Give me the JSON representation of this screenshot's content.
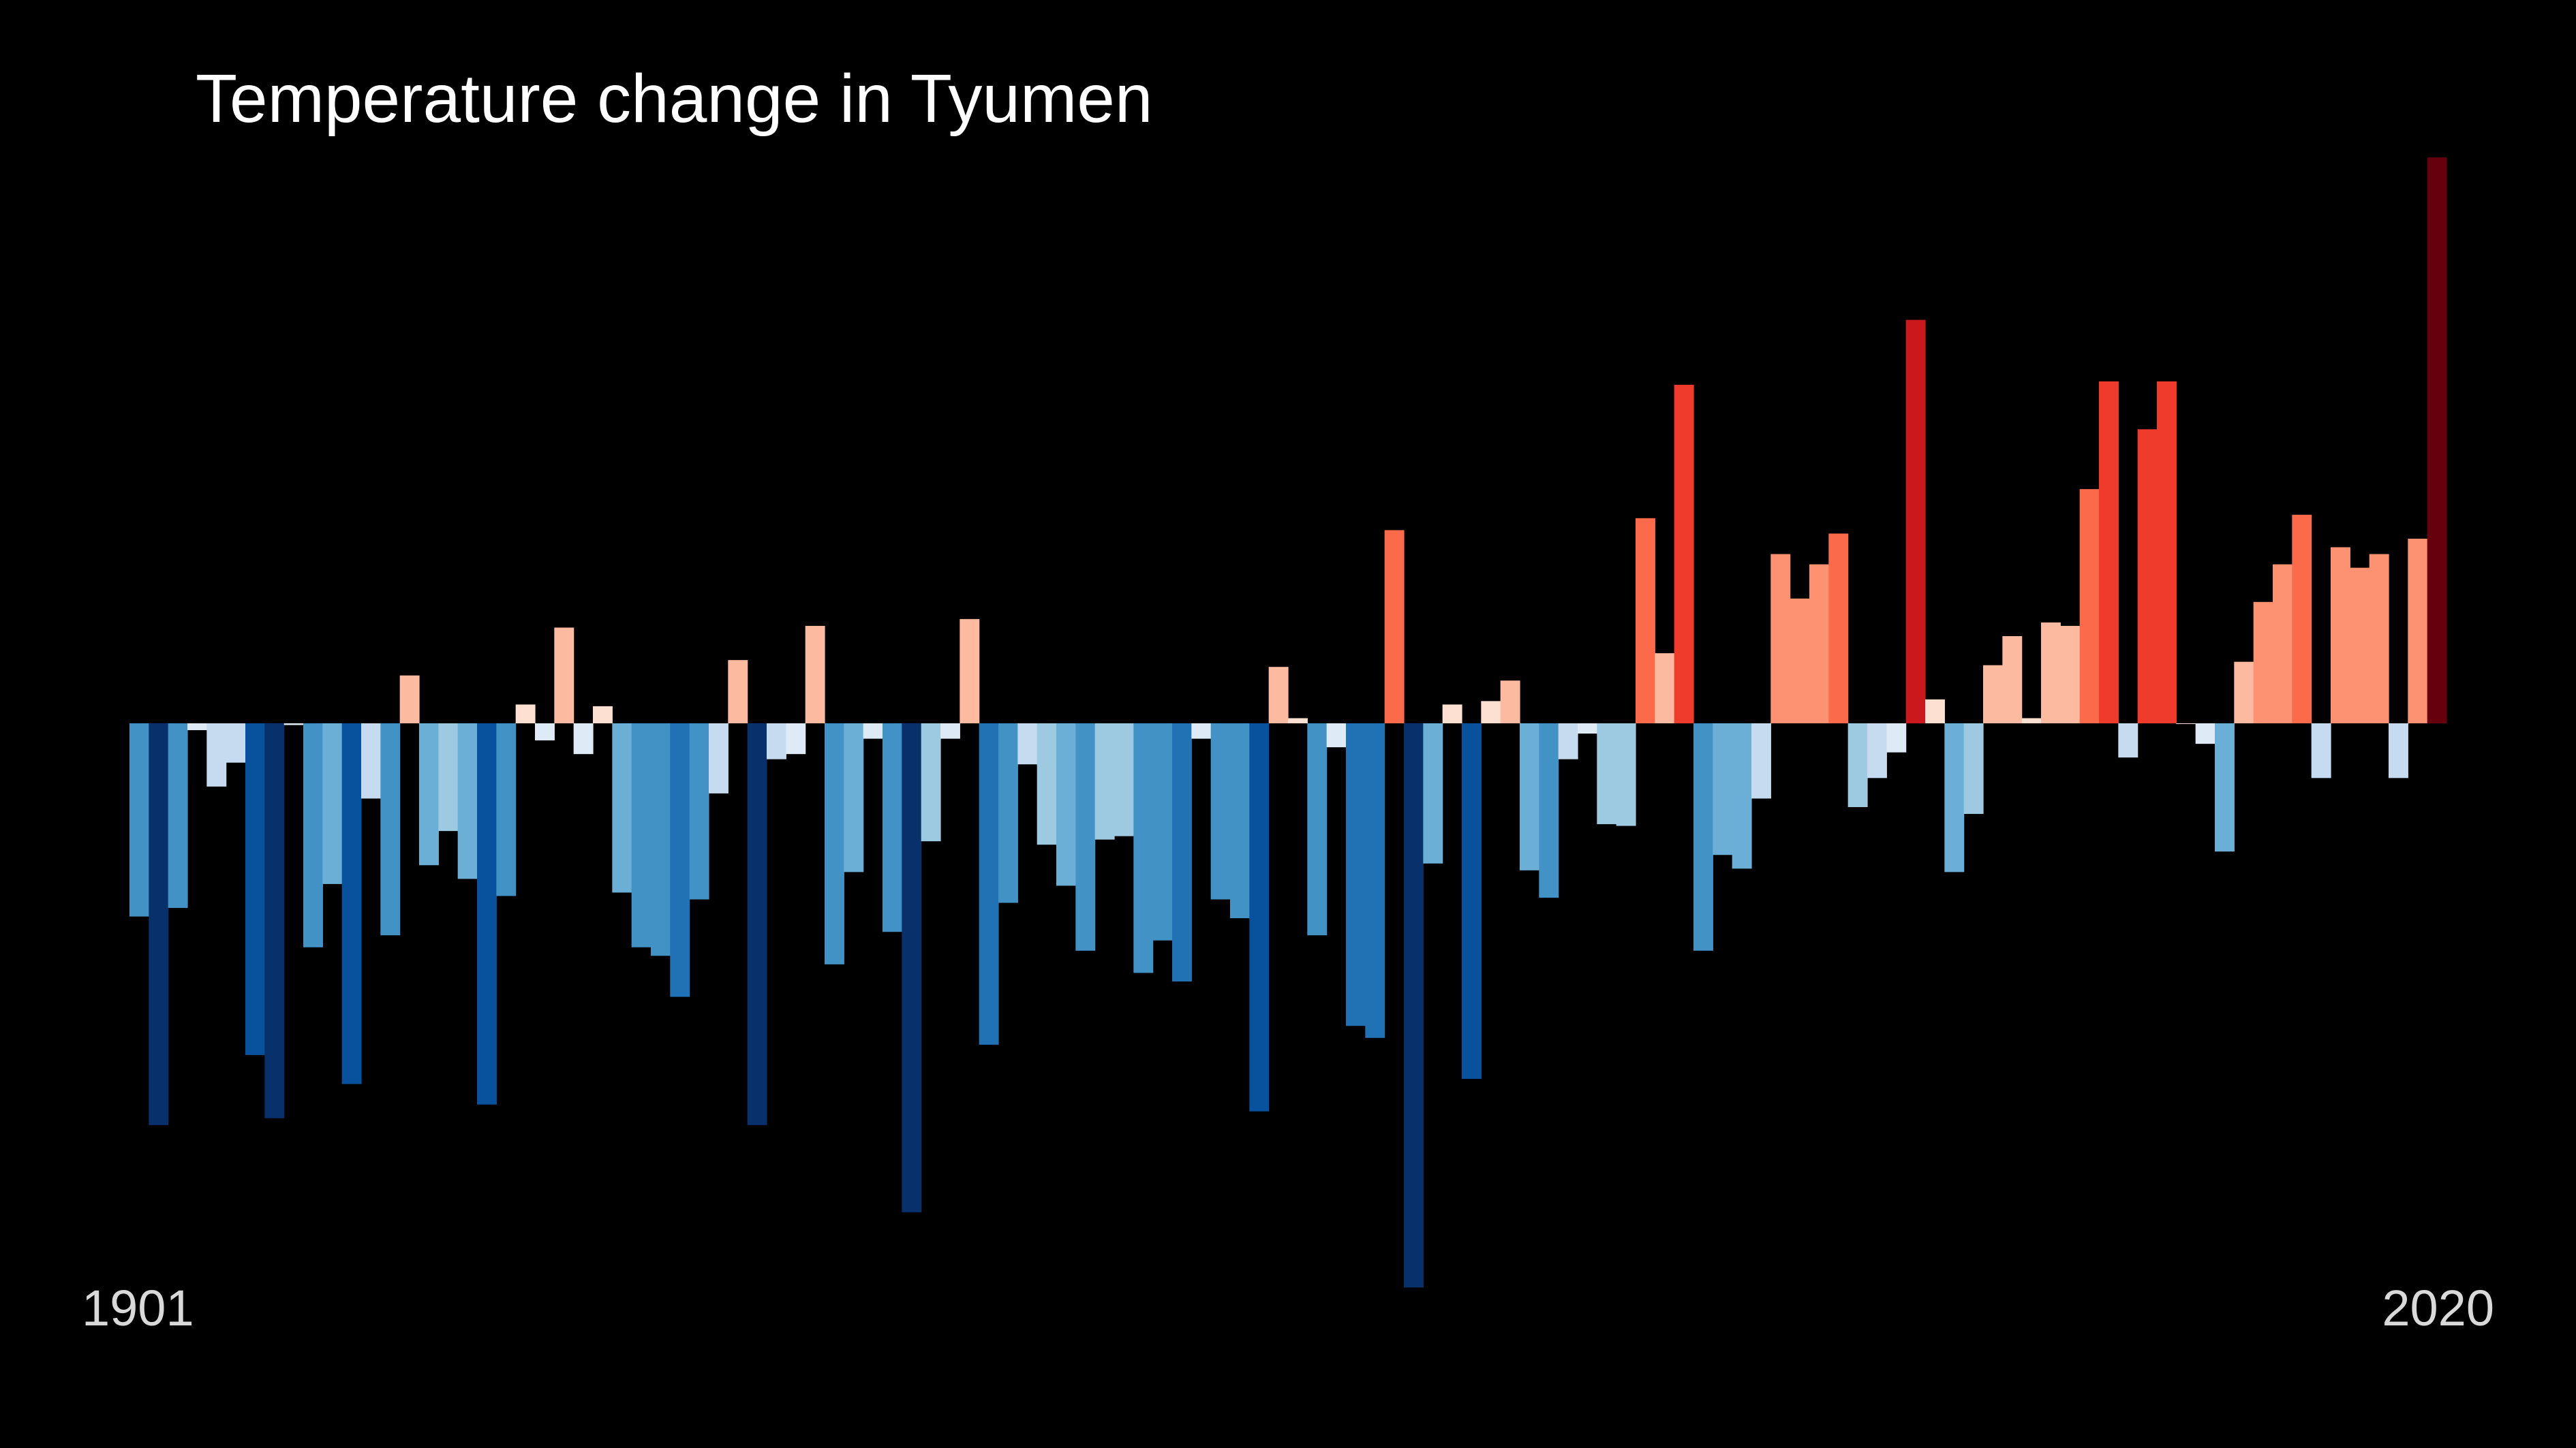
{
  "chart_data": {
    "type": "bar",
    "title": "Temperature change in Tyumen",
    "x_start_label": "1901",
    "x_end_label": "2020",
    "x": [
      1901,
      1902,
      1903,
      1904,
      1905,
      1906,
      1907,
      1908,
      1909,
      1910,
      1911,
      1912,
      1913,
      1914,
      1915,
      1916,
      1917,
      1918,
      1919,
      1920,
      1921,
      1922,
      1923,
      1924,
      1925,
      1926,
      1927,
      1928,
      1929,
      1930,
      1931,
      1932,
      1933,
      1934,
      1935,
      1936,
      1937,
      1938,
      1939,
      1940,
      1941,
      1942,
      1943,
      1944,
      1945,
      1946,
      1947,
      1948,
      1949,
      1950,
      1951,
      1952,
      1953,
      1954,
      1955,
      1956,
      1957,
      1958,
      1959,
      1960,
      1961,
      1962,
      1963,
      1964,
      1965,
      1966,
      1967,
      1968,
      1969,
      1970,
      1971,
      1972,
      1973,
      1974,
      1975,
      1976,
      1977,
      1978,
      1979,
      1980,
      1981,
      1982,
      1983,
      1984,
      1985,
      1986,
      1987,
      1988,
      1989,
      1990,
      1991,
      1992,
      1993,
      1994,
      1995,
      1996,
      1997,
      1998,
      1999,
      2000,
      2001,
      2002,
      2003,
      2004,
      2005,
      2006,
      2007,
      2008,
      2009,
      2010,
      2011,
      2012,
      2013,
      2014,
      2015,
      2016,
      2017,
      2018,
      2019,
      2020
    ],
    "values": [
      -1.13,
      -2.35,
      -1.08,
      -0.04,
      -0.37,
      -0.23,
      -1.94,
      -2.31,
      -0.01,
      -1.31,
      -0.94,
      -2.11,
      -0.44,
      -1.24,
      0.28,
      -0.83,
      -0.63,
      -0.91,
      -2.23,
      -1.01,
      0.11,
      -0.1,
      0.56,
      -0.18,
      0.1,
      -0.99,
      -1.31,
      -1.36,
      -1.6,
      -1.03,
      -0.41,
      0.37,
      -2.35,
      -0.21,
      -0.18,
      0.57,
      -1.41,
      -0.87,
      -0.09,
      -1.22,
      -2.86,
      -0.69,
      -0.09,
      0.61,
      -1.88,
      -1.05,
      -0.24,
      -0.71,
      -0.95,
      -1.33,
      -0.68,
      -0.66,
      -1.46,
      -1.27,
      -1.51,
      -0.09,
      -1.03,
      -1.14,
      -2.27,
      0.33,
      0.03,
      -1.24,
      -0.14,
      -1.77,
      -1.84,
      1.13,
      -3.3,
      -0.82,
      0.11,
      -2.08,
      0.13,
      0.25,
      -0.86,
      -1.02,
      -0.21,
      -0.06,
      -0.59,
      -0.6,
      1.2,
      0.41,
      1.98,
      -1.33,
      -0.77,
      -0.85,
      -0.44,
      0.99,
      0.73,
      0.93,
      1.11,
      -0.49,
      -0.32,
      -0.17,
      2.36,
      0.14,
      -0.87,
      -0.53,
      0.34,
      0.51,
      0.03,
      0.59,
      0.57,
      1.37,
      2.0,
      -0.2,
      1.72,
      2.0,
      0.0,
      -0.12,
      -0.75,
      0.36,
      0.71,
      0.93,
      1.22,
      -0.32,
      1.03,
      0.91,
      0.99,
      -0.32,
      1.08,
      3.31
    ]
  }
}
